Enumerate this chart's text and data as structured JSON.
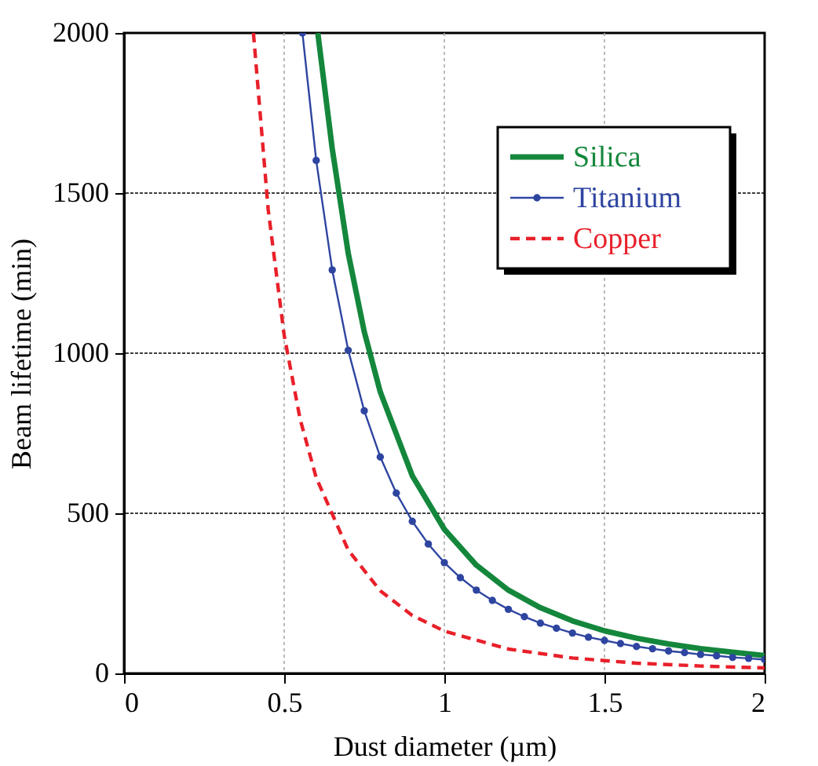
{
  "chart_data": {
    "type": "line",
    "xlabel": "Dust diameter (µm)",
    "ylabel": "Beam lifetime (min)",
    "xlim": [
      0,
      2
    ],
    "xticks": [
      0,
      0.5,
      1,
      1.5,
      2
    ],
    "ylim": [
      0,
      2000
    ],
    "yticks": [
      0,
      500,
      1000,
      1500,
      2000
    ],
    "grid": true,
    "legend": "top right",
    "series": [
      {
        "name": "Silica",
        "color": "#14873c",
        "line_style": "solid",
        "marker": "none",
        "x": [
          0.605,
          0.65,
          0.7,
          0.75,
          0.8,
          0.9,
          1.0,
          1.1,
          1.2,
          1.3,
          1.4,
          1.5,
          1.6,
          1.7,
          1.8,
          1.9,
          2.0
        ],
        "values": [
          2000,
          1639,
          1312,
          1067,
          879,
          617,
          450,
          338,
          260,
          205,
          164,
          133,
          110,
          92,
          77,
          66,
          56
        ]
      },
      {
        "name": "Titanium",
        "color": "#2e45a0",
        "line_style": "solid",
        "marker": "circle",
        "x": [
          0.557,
          0.6,
          0.65,
          0.7,
          0.75,
          0.8,
          0.85,
          0.9,
          0.95,
          1.0,
          1.05,
          1.1,
          1.15,
          1.2,
          1.25,
          1.3,
          1.35,
          1.4,
          1.45,
          1.5,
          1.55,
          1.6,
          1.65,
          1.7,
          1.75,
          1.8,
          1.85,
          1.9,
          1.95,
          2.0
        ],
        "values": [
          2000,
          1602,
          1260,
          1009,
          820,
          676,
          563,
          475,
          404,
          346,
          299,
          260,
          228,
          200,
          177,
          157,
          141,
          126,
          113,
          103,
          93,
          84,
          77,
          70,
          65,
          59,
          55,
          50,
          47,
          43
        ]
      },
      {
        "name": "Copper",
        "color": "#e8202a",
        "line_style": "dashed",
        "marker": "none",
        "x": [
          0.404,
          0.45,
          0.5,
          0.55,
          0.6,
          0.7,
          0.8,
          0.9,
          1.0,
          1.2,
          1.4,
          1.6,
          1.8,
          2.0
        ],
        "values": [
          2000,
          1449,
          1056,
          793,
          611,
          385,
          258,
          181,
          132,
          76,
          48,
          32,
          23,
          17
        ]
      }
    ]
  }
}
